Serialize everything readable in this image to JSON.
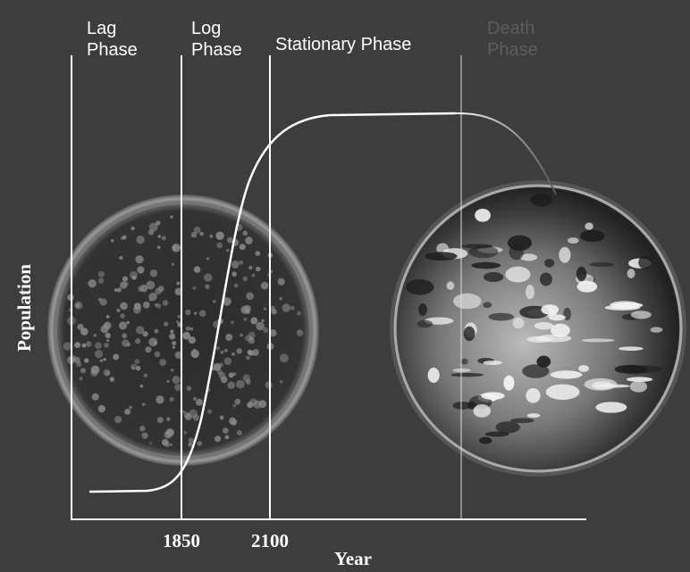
{
  "phases": [
    {
      "lines": [
        "Lag",
        "Phase"
      ]
    },
    {
      "lines": [
        "Log",
        "Phase"
      ]
    },
    {
      "lines": [
        "Stationary Phase"
      ]
    },
    {
      "lines": [
        "Death",
        "Phase"
      ]
    }
  ],
  "axes": {
    "y_label": "Population",
    "x_label": "Year",
    "x_ticks": [
      "1850",
      "2100"
    ]
  }
}
